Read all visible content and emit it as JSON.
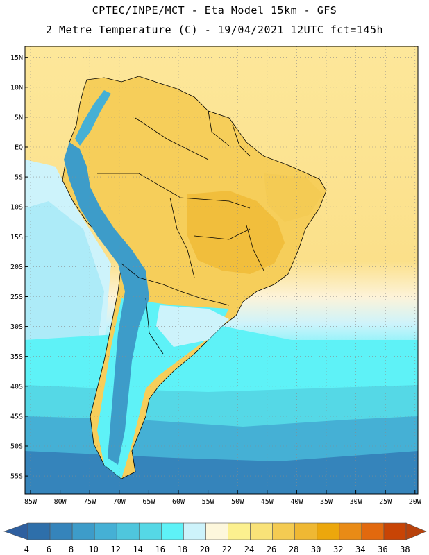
{
  "header": {
    "line1": "CPTEC/INPE/MCT -  Eta Model 15km - GFS",
    "line2": "2 Metre Temperature (C) - 19/04/2021 12UTC fct=145h"
  },
  "lat_labels": [
    "15N",
    "10N",
    "5N",
    "EQ",
    "5S",
    "10S",
    "15S",
    "20S",
    "25S",
    "30S",
    "35S",
    "40S",
    "45S",
    "50S",
    "55S"
  ],
  "lat_values": [
    15,
    10,
    5,
    0,
    -5,
    -10,
    -15,
    -20,
    -25,
    -30,
    -35,
    -40,
    -45,
    -50,
    -55
  ],
  "lon_labels": [
    "85W",
    "80W",
    "75W",
    "70W",
    "65W",
    "60W",
    "55W",
    "50W",
    "45W",
    "40W",
    "35W",
    "30W",
    "25W",
    "20W"
  ],
  "lon_values": [
    -85,
    -80,
    -75,
    -70,
    -65,
    -60,
    -55,
    -50,
    -45,
    -40,
    -35,
    -30,
    -25,
    -20
  ],
  "colorbar": {
    "labels": [
      "4",
      "6",
      "8",
      "10",
      "12",
      "14",
      "16",
      "18",
      "20",
      "22",
      "24",
      "26",
      "28",
      "30",
      "32",
      "34",
      "36",
      "38"
    ],
    "colors": [
      "#2e6faa",
      "#3584bb",
      "#3d9cc9",
      "#45b0d5",
      "#4fc6dd",
      "#55d8e6",
      "#5ef2f7",
      "#cdf3fb",
      "#fdf7dc",
      "#fcf08f",
      "#f9e278",
      "#f4cb52",
      "#efb833",
      "#eca70c",
      "#e98b16",
      "#e2690e",
      "#c84405"
    ],
    "left_arrow_color": "#2e5f9f",
    "right_arrow_color": "#b8420c"
  },
  "colors": {
    "land_warm": "#f6ce5a",
    "ocean_tropical": "#fbdc70",
    "ocean_cool": "#5ee8f2",
    "ocean_cold": "#3a8cc2",
    "andes": "#3d9cc9",
    "border": "#000000"
  }
}
